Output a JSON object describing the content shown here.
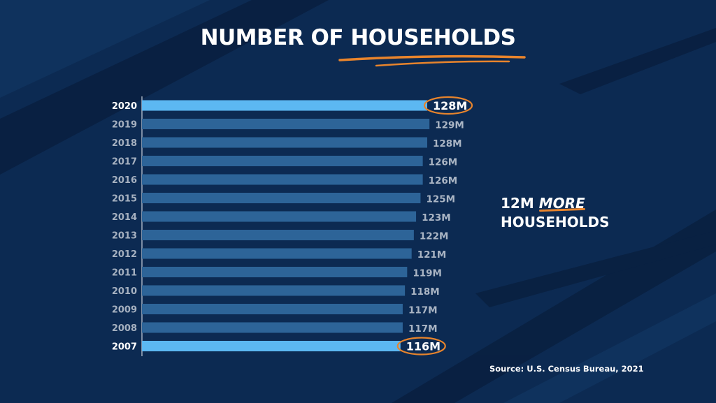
{
  "title": {
    "before": "NUMBER OF",
    "highlight": "HOUSEHOLDS"
  },
  "callout": {
    "line1_number": "12M",
    "line1_emphasis": "MORE",
    "line2": "HOUSEHOLDS"
  },
  "source": "Source: U.S. Census Bureau, 2021",
  "colors": {
    "background": "#0c2a52",
    "bar_default": "#2d6498",
    "bar_highlight": "#5cb8f2",
    "accent_orange": "#e8842c",
    "value_label": "#aab5c4",
    "year_label": "#a6b1c0"
  },
  "chart_data": {
    "type": "bar",
    "orientation": "horizontal",
    "title": "NUMBER OF HOUSEHOLDS",
    "categories": [
      "2020",
      "2019",
      "2018",
      "2017",
      "2016",
      "2015",
      "2014",
      "2013",
      "2012",
      "2011",
      "2010",
      "2009",
      "2008",
      "2007"
    ],
    "values": [
      128,
      129,
      128,
      126,
      126,
      125,
      123,
      122,
      121,
      119,
      118,
      117,
      117,
      116
    ],
    "value_labels": [
      "128M",
      "129M",
      "128M",
      "126M",
      "126M",
      "125M",
      "123M",
      "122M",
      "121M",
      "119M",
      "118M",
      "117M",
      "117M",
      "116M"
    ],
    "highlighted": [
      "2020",
      "2007"
    ],
    "xlabel": "",
    "ylabel": "",
    "grid": false,
    "legend": "none"
  }
}
